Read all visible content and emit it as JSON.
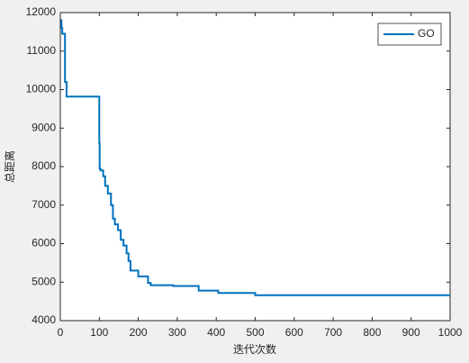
{
  "chart_data": {
    "type": "line",
    "xlabel": "迭代次数",
    "ylabel": "总距离",
    "x": [
      1,
      3,
      3,
      5,
      5,
      12,
      12,
      16,
      16,
      100,
      100,
      101,
      101,
      103,
      103,
      110,
      110,
      115,
      115,
      122,
      122,
      130,
      130,
      135,
      135,
      140,
      140,
      148,
      148,
      155,
      155,
      162,
      162,
      170,
      170,
      175,
      175,
      180,
      180,
      200,
      200,
      225,
      225,
      232,
      232,
      290,
      290,
      355,
      355,
      405,
      405,
      500,
      500,
      1000
    ],
    "series": [
      {
        "name": "GO",
        "color": "#0072bd",
        "values": [
          11800,
          11800,
          11600,
          11600,
          11450,
          11450,
          10200,
          10200,
          9820,
          9820,
          8600,
          8600,
          7950,
          7950,
          7900,
          7900,
          7750,
          7750,
          7500,
          7500,
          7300,
          7300,
          7000,
          7000,
          6650,
          6650,
          6500,
          6500,
          6350,
          6350,
          6100,
          6100,
          5950,
          5950,
          5750,
          5750,
          5550,
          5550,
          5300,
          5300,
          5150,
          5150,
          4980,
          4980,
          4920,
          4920,
          4900,
          4900,
          4780,
          4780,
          4720,
          4720,
          4660,
          4660
        ]
      }
    ],
    "xlim": [
      0,
      1000
    ],
    "xticks": [
      0,
      100,
      200,
      300,
      400,
      500,
      600,
      700,
      800,
      900,
      1000
    ],
    "ylim": [
      4000,
      12000
    ],
    "yticks": [
      4000,
      5000,
      6000,
      7000,
      8000,
      9000,
      10000,
      11000,
      12000
    ],
    "grid": false,
    "legend": "top-right"
  }
}
